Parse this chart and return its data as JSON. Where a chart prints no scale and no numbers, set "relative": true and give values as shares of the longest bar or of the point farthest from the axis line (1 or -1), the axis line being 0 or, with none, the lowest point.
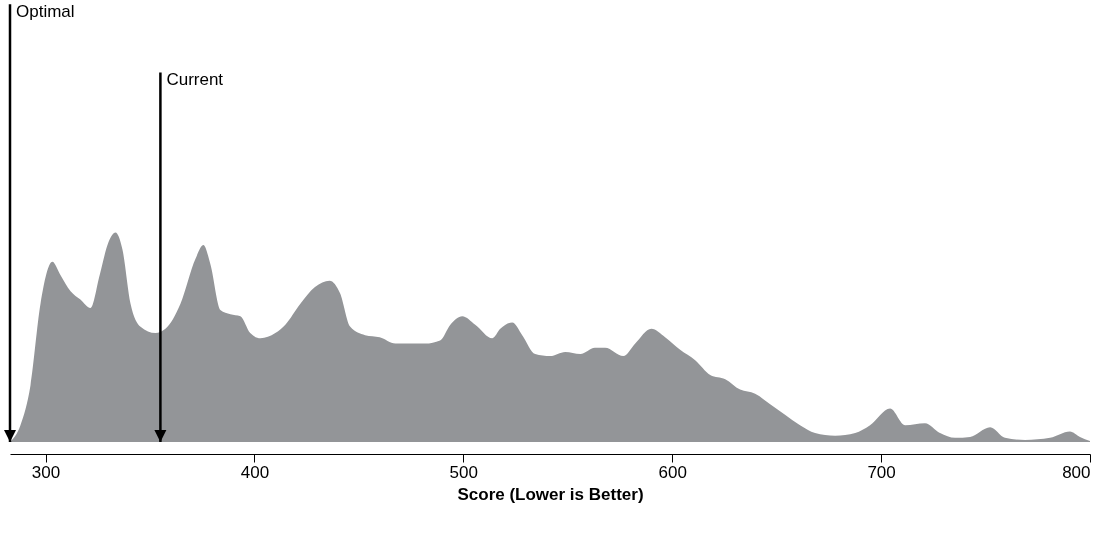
{
  "chart_data": {
    "type": "area",
    "xlabel": "Score (Lower is Better)",
    "relative": true,
    "color": "#939598",
    "x": [
      283,
      288,
      292.8,
      297.6,
      303.3,
      307,
      312,
      316.7,
      321.5,
      326,
      330,
      333.5,
      336.8,
      340.7,
      345.5,
      352.6,
      357.4,
      364.6,
      371.8,
      375.6,
      378.9,
      383.7,
      388.5,
      393.3,
      398,
      402.9,
      410,
      414.8,
      422,
      429,
      436,
      441,
      445.9,
      453,
      460,
      467.5,
      481.8,
      488.9,
      493.8,
      499.5,
      505.7,
      513.9,
      517.7,
      523.4,
      528.2,
      534.4,
      541.6,
      548.8,
      556,
      563,
      567.9,
      576.6,
      582.3,
      590,
      596.6,
      603.8,
      611,
      618.2,
      625.4,
      632.5,
      639.7,
      646.9,
      654,
      661.2,
      668.4,
      678,
      687.6,
      694.7,
      704.3,
      711.5,
      721,
      728.2,
      735.4,
      742.6,
      752.2,
      759.3,
      768.9,
      780.9,
      790.4,
      795.2,
      800
    ],
    "values": [
      0,
      0.08,
      0.27,
      0.66,
      0.86,
      0.8,
      0.72,
      0.68,
      0.64,
      0.8,
      0.95,
      1,
      0.92,
      0.66,
      0.55,
      0.52,
      0.54,
      0.66,
      0.875,
      0.94,
      0.85,
      0.63,
      0.61,
      0.6,
      0.52,
      0.495,
      0.52,
      0.56,
      0.66,
      0.74,
      0.77,
      0.71,
      0.55,
      0.51,
      0.5,
      0.47,
      0.47,
      0.485,
      0.56,
      0.6,
      0.56,
      0.495,
      0.54,
      0.57,
      0.51,
      0.42,
      0.41,
      0.43,
      0.42,
      0.45,
      0.45,
      0.41,
      0.47,
      0.54,
      0.5,
      0.44,
      0.39,
      0.32,
      0.3,
      0.25,
      0.23,
      0.18,
      0.13,
      0.08,
      0.043,
      0.03,
      0.043,
      0.08,
      0.16,
      0.08,
      0.09,
      0.043,
      0.02,
      0.024,
      0.07,
      0.02,
      0.01,
      0.02,
      0.05,
      0.024,
      0.005
    ],
    "xlim": [
      283,
      800
    ],
    "xticks": [
      300,
      400,
      500,
      600,
      700,
      800
    ],
    "ref_lines": [
      {
        "axis": "x",
        "value": 283,
        "label": "Optimal",
        "color": "#000000"
      },
      {
        "axis": "x",
        "value": 355,
        "label": "Current",
        "color": "#000000"
      }
    ]
  }
}
